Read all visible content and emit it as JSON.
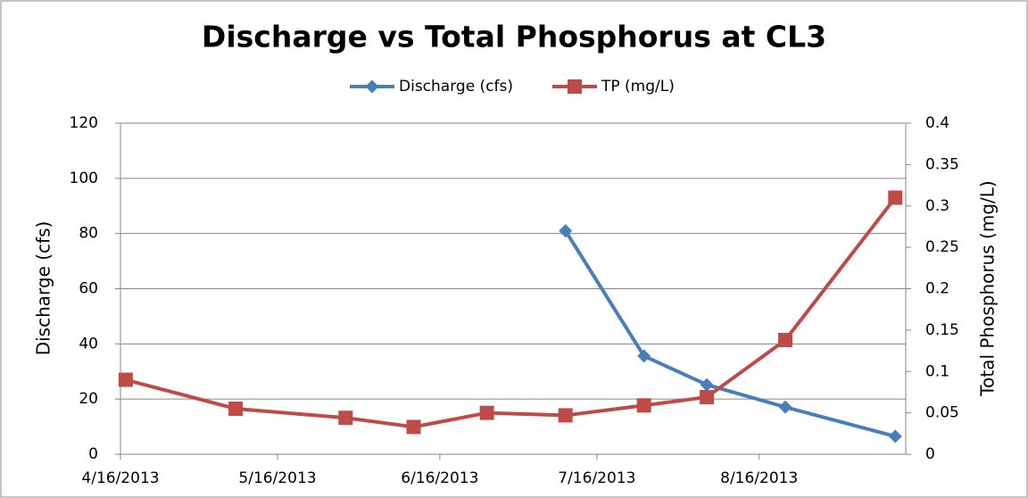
{
  "chart_data": {
    "type": "line",
    "title": "Discharge vs Total Phosphorus at CL3",
    "y_label": "Discharge (cfs)",
    "y2_label": "Total Phosphorus  (mg/L)",
    "x": [
      "2013-04-17",
      "2013-05-08",
      "2013-05-29",
      "2013-06-11",
      "2013-06-25",
      "2013-07-10",
      "2013-07-25",
      "2013-08-06",
      "2013-08-21",
      "2013-09-11"
    ],
    "series": [
      {
        "name": "Discharge (cfs)",
        "color": "#4a7ebb",
        "marker": "diamond",
        "values": [
          null,
          null,
          null,
          null,
          null,
          81,
          35.6,
          25.2,
          17.1,
          6.5
        ]
      },
      {
        "name": "TP (mg/L)",
        "color": "#be4b48",
        "marker": "square",
        "axis": "y2",
        "values": [
          0.09,
          0.055,
          0.044,
          0.033,
          0.05,
          0.047,
          0.059,
          0.069,
          0.138,
          0.31
        ]
      }
    ],
    "xlim": [
      "2013-04-16",
      "2013-09-13"
    ],
    "xticks": [
      {
        "value": "2013-04-16",
        "label": "4/16/2013"
      },
      {
        "value": "2013-05-16",
        "label": "5/16/2013"
      },
      {
        "value": "2013-06-16",
        "label": "6/16/2013"
      },
      {
        "value": "2013-07-16",
        "label": "7/16/2013"
      },
      {
        "value": "2013-08-16",
        "label": "8/16/2013"
      }
    ],
    "ylim": [
      0,
      120
    ],
    "yticks": [
      0,
      20,
      40,
      60,
      80,
      100,
      120
    ],
    "y2lim": [
      0,
      0.4
    ],
    "y2ticks": [
      0,
      0.05,
      0.1,
      0.15,
      0.2,
      0.25,
      0.3,
      0.35,
      0.4
    ],
    "grid": true,
    "legend": "top"
  }
}
